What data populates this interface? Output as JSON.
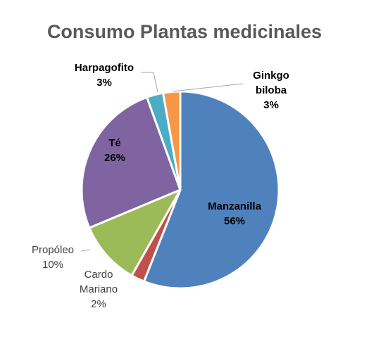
{
  "chart_data": {
    "type": "pie",
    "title": "Consumo Plantas medicinales",
    "slices": [
      {
        "name": "Manzanilla",
        "line1": "Manzanilla",
        "line2": "",
        "pct_label": "56%",
        "value": 56,
        "color": "#4f81bd"
      },
      {
        "name": "Cardo Mariano",
        "line1": "Cardo",
        "line2": "Mariano",
        "pct_label": "2%",
        "value": 2.2,
        "color": "#c0504d"
      },
      {
        "name": "Propóleo",
        "line1": "Propóleo",
        "line2": "",
        "pct_label": "10%",
        "value": 10.5,
        "color": "#9bbb59"
      },
      {
        "name": "Té",
        "line1": "Té",
        "line2": "",
        "pct_label": "26%",
        "value": 25.8,
        "color": "#8064a2"
      },
      {
        "name": "Harpagofito",
        "line1": "Harpagofito",
        "line2": "",
        "pct_label": "3%",
        "value": 2.7,
        "color": "#4bacc6"
      },
      {
        "name": "Ginkgo biloba",
        "line1": "Ginkgo",
        "line2": "biloba",
        "pct_label": "3%",
        "value": 2.8,
        "color": "#f79646"
      }
    ]
  }
}
